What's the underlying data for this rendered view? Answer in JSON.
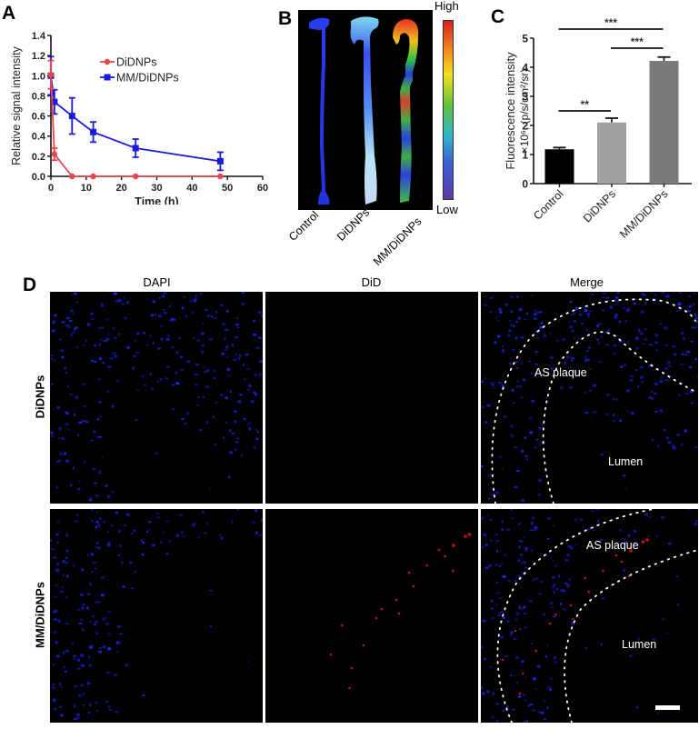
{
  "panels": {
    "A": {
      "letter": "A"
    },
    "B": {
      "letter": "B"
    },
    "C": {
      "letter": "C"
    },
    "D": {
      "letter": "D"
    }
  },
  "chart_data": [
    {
      "panel": "A",
      "type": "line",
      "title": "",
      "xlabel": "Time (h)",
      "ylabel": "Relative signal intensity",
      "xlim": [
        0,
        60
      ],
      "ylim": [
        0,
        1.4
      ],
      "xticks": [
        0,
        10,
        20,
        30,
        40,
        50,
        60
      ],
      "yticks": [
        "0.0",
        "0.2",
        "0.4",
        "0.6",
        "0.8",
        "1.0",
        "1.2",
        "1.4"
      ],
      "legend_position": "upper right inside",
      "grid": false,
      "series": [
        {
          "name": "DiDNPs",
          "color": "#e8464a",
          "marker": "circle",
          "x": [
            0,
            1,
            6,
            12,
            24,
            48
          ],
          "y": [
            1.01,
            0.22,
            0.0,
            0.0,
            0.0,
            0.0
          ],
          "error": [
            0.14,
            0.06,
            0,
            0,
            0,
            0
          ]
        },
        {
          "name": "MM/DiDNPs",
          "color": "#1a1adb",
          "marker": "square",
          "x": [
            0,
            1,
            6,
            12,
            24,
            48
          ],
          "y": [
            1.0,
            0.74,
            0.6,
            0.44,
            0.28,
            0.15
          ],
          "error": [
            0.19,
            0.12,
            0.18,
            0.1,
            0.09,
            0.09
          ]
        }
      ]
    },
    {
      "panel": "B",
      "type": "heatmap",
      "title": "",
      "categories": [
        "Control",
        "DiDNPs",
        "MM/DiDNPs"
      ],
      "colorbar": {
        "high_label": "High",
        "low_label": "Low"
      }
    },
    {
      "panel": "C",
      "type": "bar",
      "title": "",
      "xlabel": "",
      "ylabel": "Fluorescence intensity ×10⁶, (p/s/cm²/sr)",
      "ylabel_line1": "Fluorescence intensity",
      "ylabel_line2": "×10⁶, (p/s/cm²/sr)",
      "categories": [
        "Control",
        "DiDNPs",
        "MM/DiDNPs"
      ],
      "values": [
        1.18,
        2.1,
        4.22
      ],
      "errors": [
        0.06,
        0.15,
        0.13
      ],
      "colors": [
        "#000000",
        "#a0a0a3",
        "#7a7a7c"
      ],
      "ylim": [
        0,
        5
      ],
      "yticks": [
        "0",
        "1",
        "2",
        "3",
        "4",
        "5"
      ],
      "significance": [
        {
          "from": "Control",
          "to": "DiDNPs",
          "label": "**"
        },
        {
          "from": "DiDNPs",
          "to": "MM/DiDNPs",
          "label": "***"
        },
        {
          "from": "Control",
          "to": "MM/DiDNPs",
          "label": "***"
        }
      ]
    }
  ],
  "panelD": {
    "columns": [
      "DAPI",
      "DiD",
      "Merge"
    ],
    "rows": [
      "DiDNPs",
      "MM/DiDNPs"
    ],
    "annotations": {
      "plaque": "AS plaque",
      "lumen": "Lumen"
    }
  }
}
